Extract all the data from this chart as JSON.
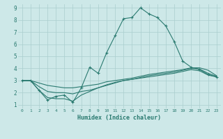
{
  "xlabel": "Humidex (Indice chaleur)",
  "background_color": "#cde8e8",
  "grid_color": "#aacece",
  "line_color": "#2a7a70",
  "xlim": [
    -0.5,
    23.5
  ],
  "ylim": [
    0.7,
    9.3
  ],
  "xticks": [
    0,
    1,
    2,
    3,
    4,
    5,
    6,
    7,
    8,
    9,
    10,
    11,
    12,
    13,
    14,
    15,
    16,
    17,
    18,
    19,
    20,
    21,
    22,
    23
  ],
  "yticks": [
    1,
    2,
    3,
    4,
    5,
    6,
    7,
    8,
    9
  ],
  "lines": [
    {
      "x": [
        0,
        1,
        2,
        3,
        4,
        5,
        6,
        7,
        8,
        9,
        10,
        11,
        12,
        13,
        14,
        15,
        16,
        17,
        18,
        19,
        20,
        21,
        22,
        23
      ],
      "y": [
        3.0,
        3.0,
        2.2,
        1.4,
        1.7,
        1.8,
        1.2,
        2.4,
        4.1,
        3.6,
        5.3,
        6.7,
        8.1,
        8.2,
        9.0,
        8.5,
        8.2,
        7.5,
        6.2,
        4.6,
        4.1,
        3.9,
        3.5,
        3.3
      ],
      "marker": true
    },
    {
      "x": [
        0,
        1,
        2,
        3,
        4,
        5,
        6,
        7,
        8,
        9,
        10,
        11,
        12,
        13,
        14,
        15,
        16,
        17,
        18,
        19,
        20,
        21,
        22,
        23
      ],
      "y": [
        3.0,
        3.0,
        2.8,
        2.6,
        2.5,
        2.4,
        2.4,
        2.5,
        2.6,
        2.7,
        2.9,
        3.0,
        3.1,
        3.2,
        3.35,
        3.5,
        3.6,
        3.7,
        3.8,
        3.9,
        4.05,
        4.05,
        3.85,
        3.4
      ],
      "marker": false
    },
    {
      "x": [
        0,
        1,
        2,
        3,
        4,
        5,
        6,
        7,
        8,
        9,
        10,
        11,
        12,
        13,
        14,
        15,
        16,
        17,
        18,
        19,
        20,
        21,
        22,
        23
      ],
      "y": [
        3.0,
        3.0,
        2.5,
        2.1,
        2.0,
        2.0,
        1.9,
        2.1,
        2.2,
        2.4,
        2.6,
        2.8,
        3.0,
        3.1,
        3.25,
        3.4,
        3.5,
        3.6,
        3.7,
        3.85,
        4.0,
        3.95,
        3.6,
        3.35
      ],
      "marker": false
    },
    {
      "x": [
        0,
        1,
        2,
        3,
        4,
        5,
        6,
        7,
        8,
        9,
        10,
        11,
        12,
        13,
        14,
        15,
        16,
        17,
        18,
        19,
        20,
        21,
        22,
        23
      ],
      "y": [
        3.0,
        3.0,
        2.2,
        1.6,
        1.5,
        1.5,
        1.3,
        1.8,
        2.1,
        2.4,
        2.65,
        2.85,
        3.0,
        3.1,
        3.2,
        3.3,
        3.4,
        3.5,
        3.6,
        3.75,
        3.9,
        3.8,
        3.45,
        3.3
      ],
      "marker": false
    }
  ]
}
